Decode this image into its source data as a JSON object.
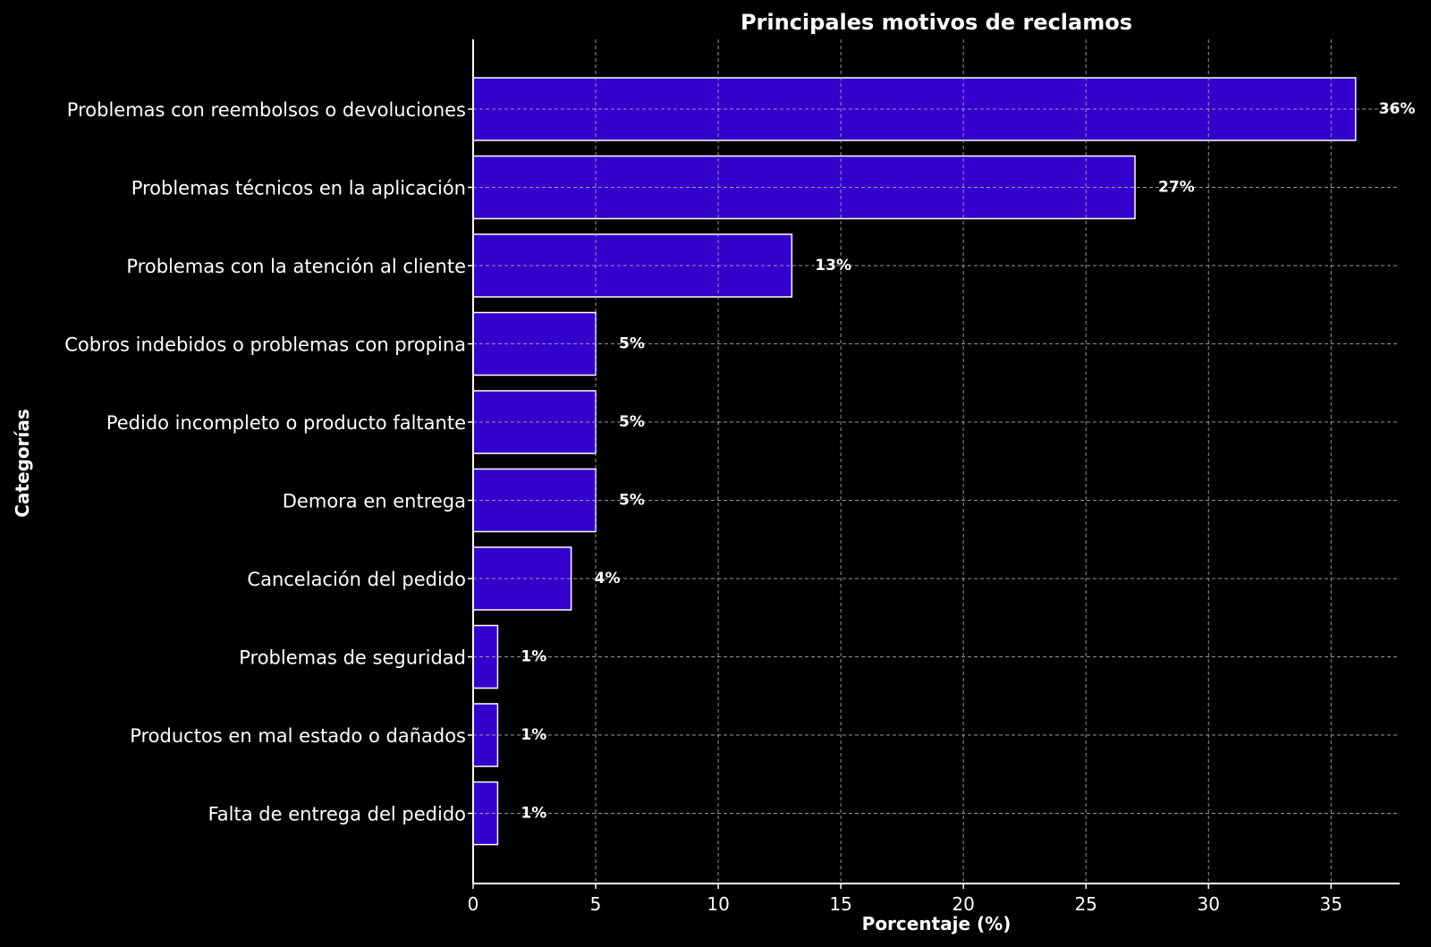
{
  "chart_data": {
    "type": "bar",
    "orientation": "horizontal",
    "title": "Principales motivos de reclamos",
    "xlabel": "Porcentaje (%)",
    "ylabel": "Categorías",
    "categories": [
      "Problemas con reembolsos o devoluciones",
      "Problemas técnicos en la aplicación",
      "Problemas con la atención al cliente",
      "Cobros indebidos o problemas con propina",
      "Pedido incompleto o producto faltante",
      "Demora en entrega",
      "Cancelación del pedido",
      "Problemas de seguridad",
      "Productos en mal estado o dañados",
      "Falta de entrega del pedido"
    ],
    "values": [
      36,
      27,
      13,
      5,
      5,
      5,
      4,
      1,
      1,
      1
    ],
    "data_labels": [
      "36%",
      "27%",
      "13%",
      "5%",
      "5%",
      "5%",
      "4%",
      "1%",
      "1%",
      "1%"
    ],
    "xlim": [
      0,
      37.8
    ],
    "xticks": [
      0,
      5,
      10,
      15,
      20,
      25,
      30,
      35
    ],
    "grid": true,
    "colors": {
      "background": "#000000",
      "bar_fill": "#3300cc",
      "bar_edge": "#ffffff",
      "grid": "#b0b0b0",
      "axis": "#ffffff",
      "text": "#ffffff"
    }
  }
}
